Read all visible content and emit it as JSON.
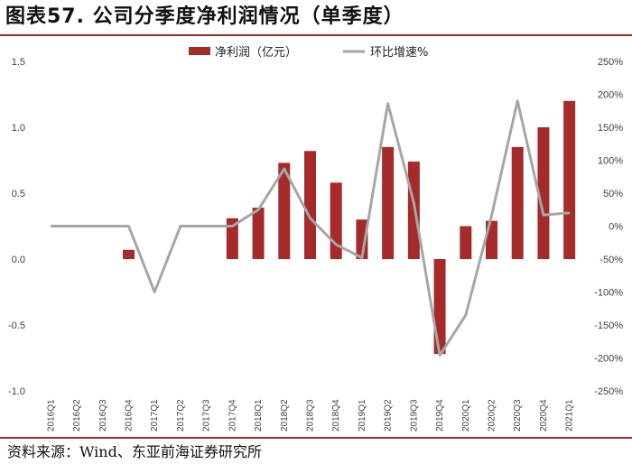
{
  "header": {
    "title": "图表57. 公司分季度净利润情况（单季度）"
  },
  "footer": {
    "source": "资料来源：Wind、东亚前海证券研究所"
  },
  "chart_data": {
    "type": "bar+line",
    "categories": [
      "2016Q1",
      "2016Q2",
      "2016Q3",
      "2016Q4",
      "2017Q1",
      "2017Q2",
      "2017Q3",
      "2017Q4",
      "2018Q1",
      "2018Q2",
      "2018Q3",
      "2018Q4",
      "2019Q1",
      "2019Q2",
      "2019Q3",
      "2019Q4",
      "2020Q1",
      "2020Q2",
      "2020Q3",
      "2020Q4",
      "2021Q1"
    ],
    "series": [
      {
        "name": "净利润（亿元）",
        "type": "bar",
        "axis": "left",
        "color": "#a52a2a",
        "values": [
          null,
          null,
          null,
          0.07,
          null,
          null,
          null,
          0.31,
          0.39,
          0.73,
          0.82,
          0.58,
          0.3,
          0.85,
          0.74,
          -0.72,
          0.25,
          0.29,
          0.85,
          1.0,
          1.2
        ]
      },
      {
        "name": "环比增速%",
        "type": "line",
        "axis": "right",
        "color": "#a6a6a6",
        "values": [
          0,
          0,
          0,
          0,
          -100,
          0,
          0,
          0,
          25,
          87,
          12,
          -28,
          -48,
          186,
          35,
          -196,
          -135,
          16,
          190,
          17,
          20
        ]
      }
    ],
    "y_left": {
      "min": -1.0,
      "max": 1.5,
      "step": 0.5,
      "ticks": [
        "-1.0",
        "-0.5",
        "0.0",
        "0.5",
        "1.0",
        "1.5"
      ]
    },
    "y_right": {
      "min": -250,
      "max": 250,
      "step": 50,
      "ticks": [
        "-250%",
        "-200%",
        "-150%",
        "-100%",
        "-50%",
        "0%",
        "50%",
        "100%",
        "150%",
        "200%",
        "250%"
      ]
    },
    "legend": {
      "position": "top-center",
      "items": [
        "净利润（亿元）",
        "环比增速%"
      ]
    },
    "grid": false
  }
}
